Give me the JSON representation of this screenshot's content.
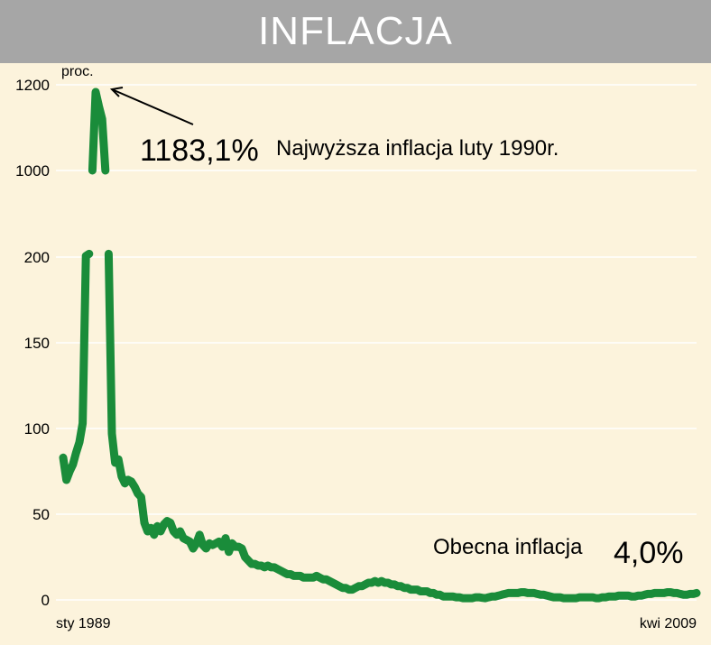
{
  "title": "INFLACJA",
  "chart_data": {
    "type": "line",
    "title": "INFLACJA",
    "ylabel": "proc.",
    "x_start_label": "sty 1989",
    "x_end_label": "kwi 2009",
    "y_ticks": [
      0,
      50,
      100,
      150,
      200,
      1000,
      1200
    ],
    "axis_break": "between 200 and 1000",
    "grid": true,
    "line_color": "#1a8c3a",
    "background_color": "#fcf3dc",
    "series": [
      {
        "values": [
          83,
          70,
          75,
          79,
          86,
          92,
          103,
          210,
          230,
          1000,
          1183.1,
          1150,
          1120,
          1000,
          230,
          97,
          80,
          82,
          72,
          68,
          70,
          69,
          66,
          62,
          60,
          45,
          40,
          42,
          38,
          43,
          40,
          44,
          46,
          45,
          40,
          38,
          40,
          36,
          35,
          34,
          30,
          33,
          38,
          32,
          30,
          33,
          32,
          33,
          34,
          31,
          36,
          28,
          33,
          31,
          31,
          30,
          25,
          23,
          21,
          21,
          20,
          20,
          19,
          20,
          19,
          19,
          18,
          17,
          16,
          15,
          15,
          14,
          14,
          14,
          13,
          13,
          13,
          13,
          14,
          13,
          12,
          12,
          11,
          10,
          9,
          8,
          7,
          7,
          6,
          6,
          7,
          8,
          8,
          9,
          10,
          10,
          11,
          10,
          11,
          10,
          10,
          9,
          9,
          8,
          8,
          7,
          7,
          6,
          6,
          6,
          5,
          5,
          5,
          4,
          4,
          3,
          3,
          2,
          2,
          2,
          2,
          1.5,
          1.5,
          1,
          1,
          1,
          1,
          1.5,
          1.5,
          1.2,
          1,
          1.5,
          2,
          2,
          2.5,
          3,
          3.5,
          4,
          4,
          4,
          4,
          4.5,
          4.5,
          4,
          4,
          4,
          3.5,
          3,
          3,
          2.5,
          2,
          1.5,
          1.5,
          1.5,
          1,
          1,
          1,
          1,
          1,
          1.5,
          1.5,
          1.5,
          1.5,
          1.5,
          1,
          1,
          1.5,
          1.5,
          2,
          2,
          2,
          2.5,
          2.5,
          2.5,
          2.5,
          2,
          2,
          2.5,
          2.5,
          3,
          3.5,
          3.5,
          4,
          4,
          4,
          4,
          4.5,
          4.5,
          4,
          4,
          3.5,
          3,
          3,
          3.5,
          3.5,
          4
        ]
      }
    ],
    "annotations": {
      "peak_value": "1183,1%",
      "peak_text": "Najwyższa inflacja luty 1990r.",
      "current_text": "Obecna inflacja",
      "current_value": "4,0%"
    }
  }
}
